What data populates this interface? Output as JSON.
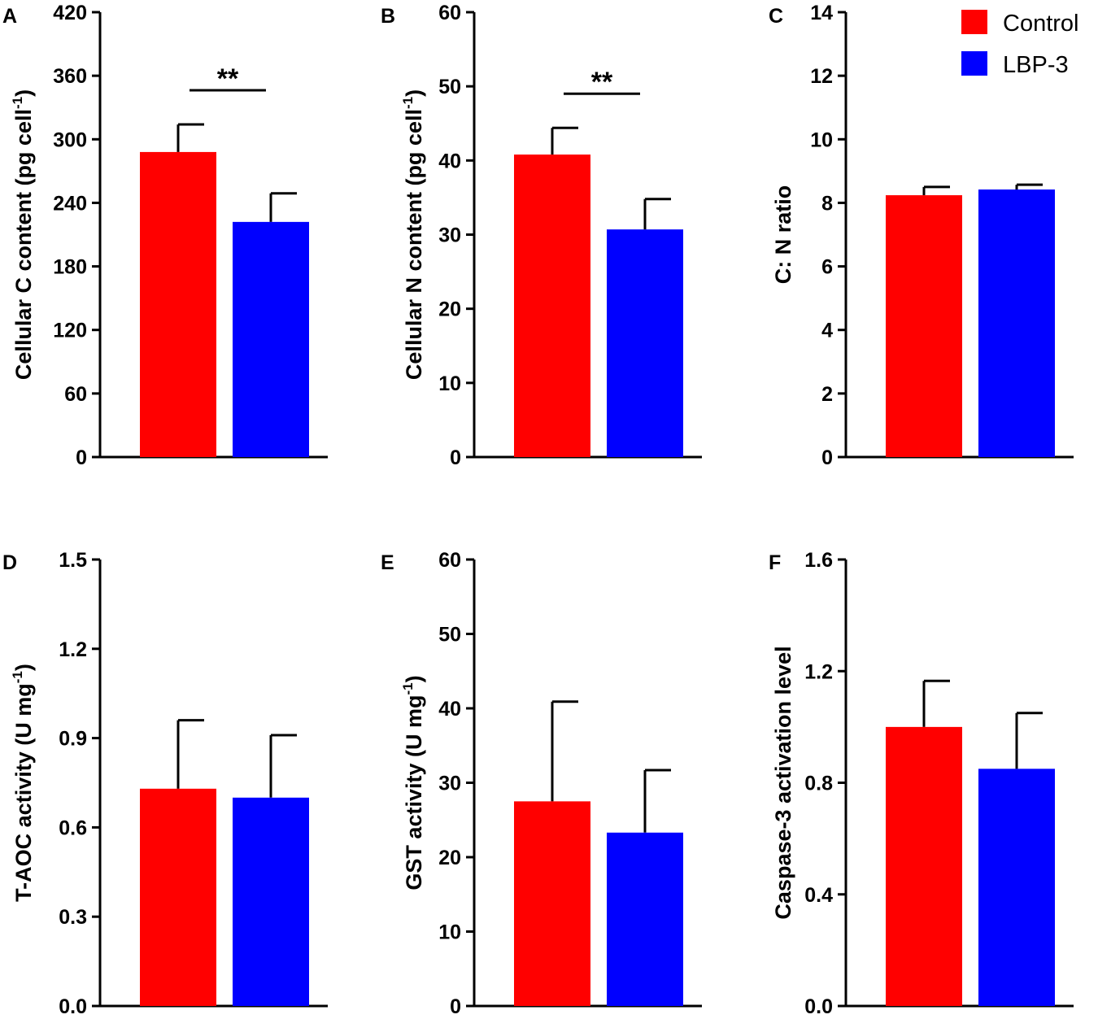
{
  "legend": [
    {
      "name": "Control",
      "color": "#ff0000"
    },
    {
      "name": "LBP-3",
      "color": "#0000ff"
    }
  ],
  "chart_data": [
    {
      "panel": "A",
      "type": "bar",
      "ylabel": [
        "Cellular C content (pg cell",
        "-1",
        ")"
      ],
      "ylim": [
        0,
        420
      ],
      "ticks": [
        "0",
        "60",
        "120",
        "180",
        "240",
        "300",
        "360",
        "420"
      ],
      "series": [
        {
          "name": "Control",
          "value": 288,
          "error": 26
        },
        {
          "name": "LBP-3",
          "value": 222,
          "error": 27
        }
      ],
      "significance": "**"
    },
    {
      "panel": "B",
      "type": "bar",
      "ylabel": [
        "Cellular N content (pg cell",
        "-1",
        ")"
      ],
      "ylim": [
        0,
        60
      ],
      "ticks": [
        "0",
        "10",
        "20",
        "30",
        "40",
        "50",
        "60"
      ],
      "series": [
        {
          "name": "Control",
          "value": 40.8,
          "error": 3.6
        },
        {
          "name": "LBP-3",
          "value": 30.7,
          "error": 4.1
        }
      ],
      "significance": "**"
    },
    {
      "panel": "C",
      "type": "bar",
      "ylabel": [
        "C: N ratio",
        "",
        ""
      ],
      "ylim": [
        0,
        14
      ],
      "ticks": [
        "0",
        "2",
        "4",
        "6",
        "8",
        "10",
        "12",
        "14"
      ],
      "series": [
        {
          "name": "Control",
          "value": 8.24,
          "error": 0.26
        },
        {
          "name": "LBP-3",
          "value": 8.42,
          "error": 0.15
        }
      ],
      "significance": ""
    },
    {
      "panel": "D",
      "type": "bar",
      "ylabel": [
        "T-AOC activity (U mg",
        "-1",
        ")"
      ],
      "ylim": [
        0,
        1.5
      ],
      "ticks": [
        "0.0",
        "0.3",
        "0.6",
        "0.9",
        "1.2",
        "1.5"
      ],
      "series": [
        {
          "name": "Control",
          "value": 0.73,
          "error": 0.23
        },
        {
          "name": "LBP-3",
          "value": 0.7,
          "error": 0.21
        }
      ],
      "significance": ""
    },
    {
      "panel": "E",
      "type": "bar",
      "ylabel": [
        "GST activity (U mg",
        "-1",
        ")"
      ],
      "ylim": [
        0,
        60
      ],
      "ticks": [
        "0",
        "10",
        "20",
        "30",
        "40",
        "50",
        "60"
      ],
      "series": [
        {
          "name": "Control",
          "value": 27.5,
          "error": 13.4
        },
        {
          "name": "LBP-3",
          "value": 23.3,
          "error": 8.4
        }
      ],
      "significance": ""
    },
    {
      "panel": "F",
      "type": "bar",
      "ylabel": [
        "Caspase-3 activation level",
        "",
        ""
      ],
      "ylim": [
        0,
        1.6
      ],
      "ticks": [
        "0.0",
        "0.4",
        "0.8",
        "1.2",
        "1.6"
      ],
      "series": [
        {
          "name": "Control",
          "value": 1.0,
          "error": 0.165
        },
        {
          "name": "LBP-3",
          "value": 0.85,
          "error": 0.2
        }
      ],
      "significance": ""
    }
  ]
}
